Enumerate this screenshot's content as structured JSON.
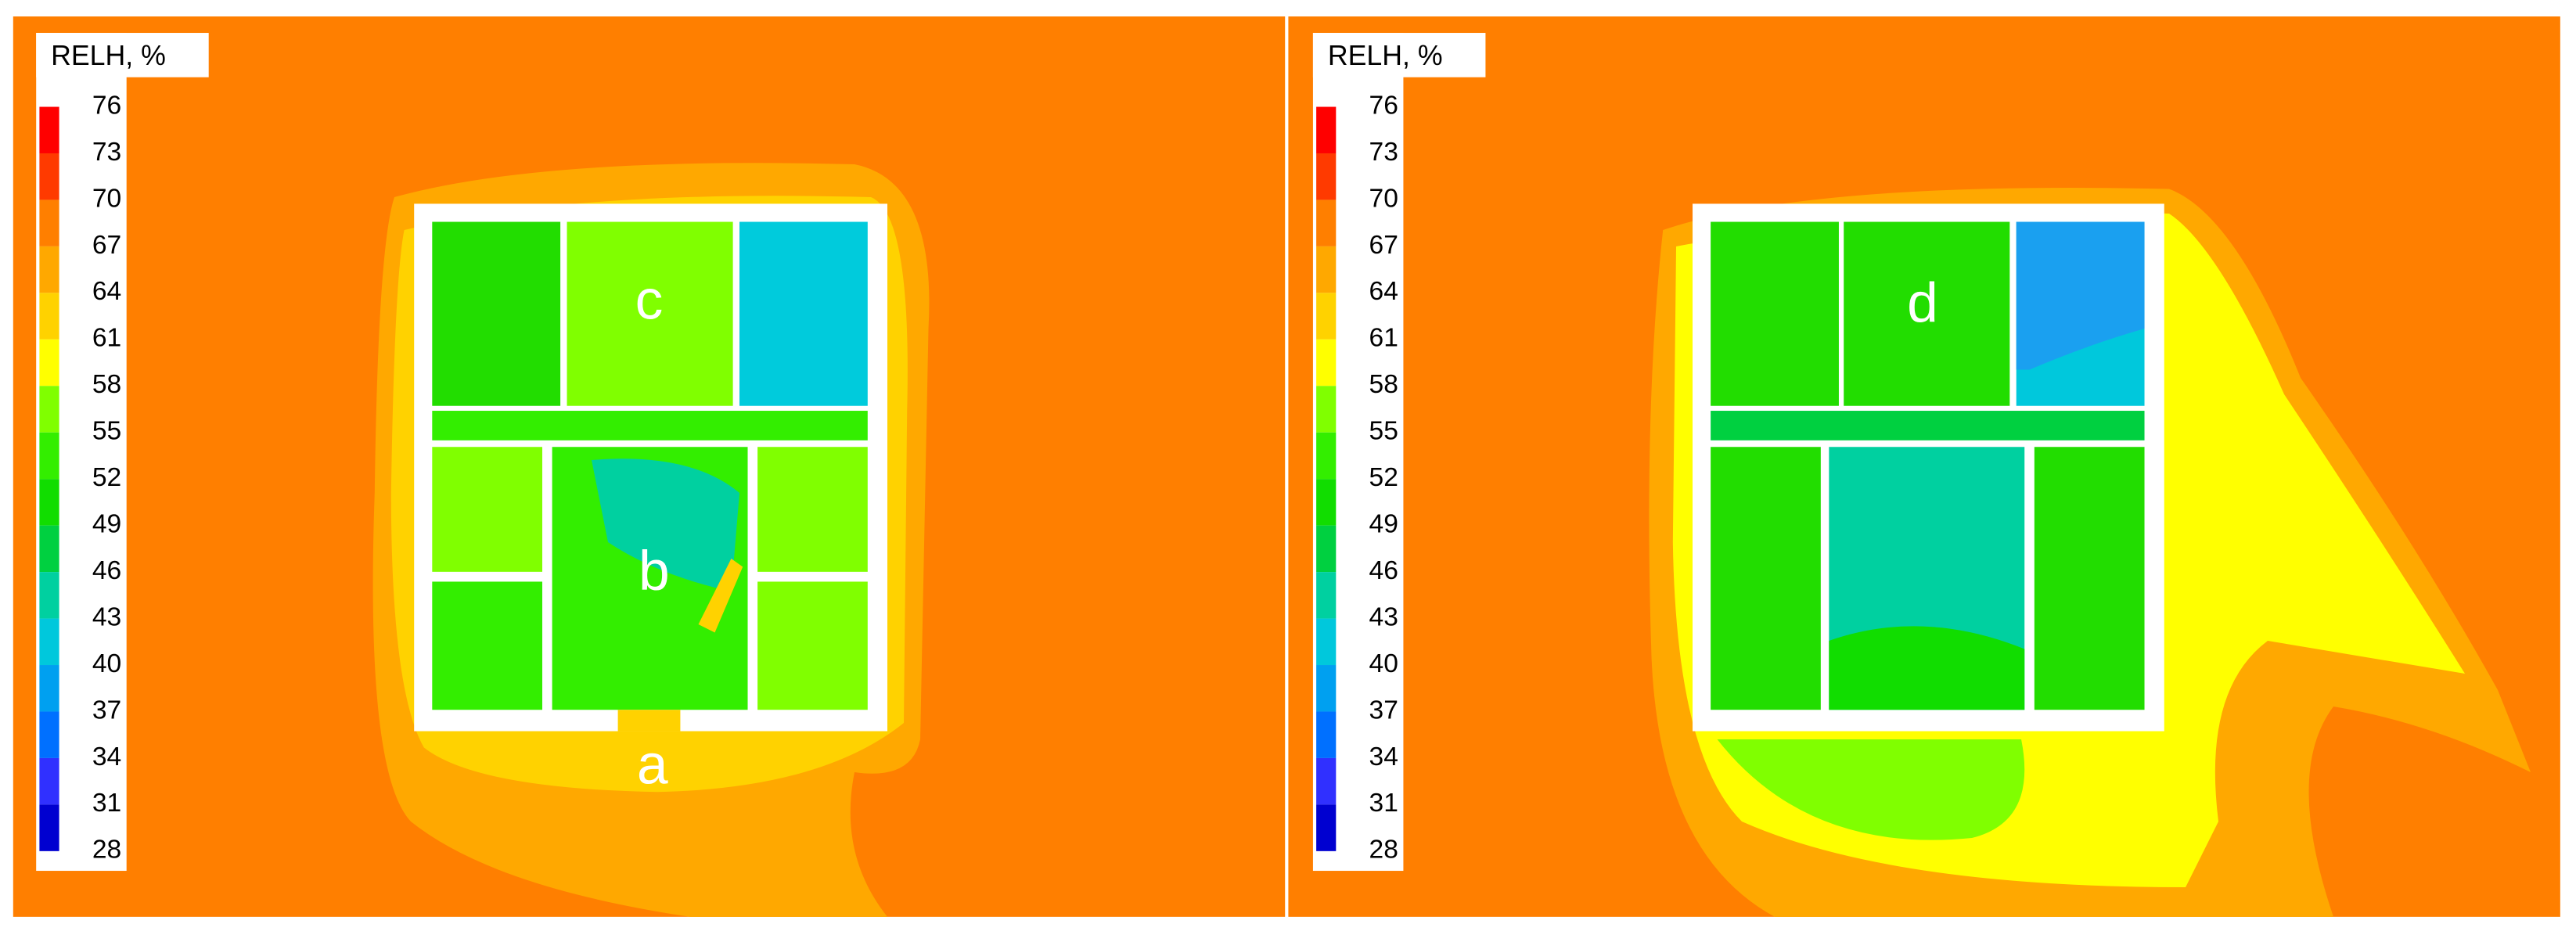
{
  "panels": [
    {
      "legend": {
        "title": "RELH, %",
        "levels": [
          76,
          73,
          70,
          67,
          64,
          61,
          58,
          55,
          52,
          49,
          46,
          43,
          40,
          37,
          34,
          31,
          28
        ],
        "colors": [
          "#ff0000",
          "#ff3a00",
          "#ff7f00",
          "#ffa800",
          "#ffd200",
          "#ffff00",
          "#80ff00",
          "#33ee00",
          "#11dd00",
          "#00d040",
          "#00d0a0",
          "#00c8dc",
          "#00a0f0",
          "#0070ff",
          "#3030ff",
          "#0000d0"
        ]
      },
      "labels": [
        "c",
        "b",
        "a"
      ]
    },
    {
      "legend": {
        "title": "RELH, %",
        "levels": [
          76,
          73,
          70,
          67,
          64,
          61,
          58,
          55,
          52,
          49,
          46,
          43,
          40,
          37,
          34,
          31,
          28
        ],
        "colors": [
          "#ff0000",
          "#ff3a00",
          "#ff7f00",
          "#ffa800",
          "#ffd200",
          "#ffff00",
          "#80ff00",
          "#33ee00",
          "#11dd00",
          "#00d040",
          "#00d0a0",
          "#00c8dc",
          "#00a0f0",
          "#0070ff",
          "#3030ff",
          "#0000d0"
        ]
      },
      "labels": [
        "d"
      ]
    }
  ]
}
